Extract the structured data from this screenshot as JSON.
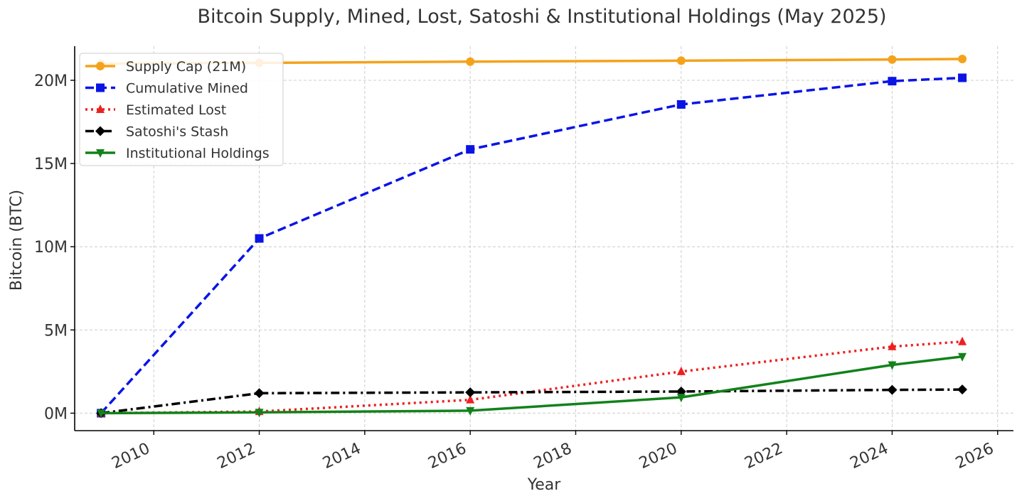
{
  "chart_data": {
    "type": "line",
    "title": "Bitcoin Supply, Mined, Lost, Satoshi & Institutional Holdings (May 2025)",
    "xlabel": "Year",
    "ylabel": "Bitcoin (BTC)",
    "xlim": [
      2008.5,
      2026.3
    ],
    "ylim": [
      -1050000,
      22050000
    ],
    "x_ticks": [
      2010,
      2012,
      2014,
      2016,
      2018,
      2020,
      2022,
      2024,
      2026
    ],
    "x_tick_labels": [
      "2010",
      "2012",
      "2014",
      "2016",
      "2018",
      "2020",
      "2022",
      "2024",
      "2026"
    ],
    "y_ticks": [
      0,
      5000000,
      10000000,
      15000000,
      20000000
    ],
    "y_tick_labels": [
      "0M",
      "5M",
      "10M",
      "15M",
      "20M"
    ],
    "grid": true,
    "legend_position": "upper-left",
    "x": [
      2009,
      2012,
      2016,
      2020,
      2024,
      2025.33
    ],
    "series": [
      {
        "name": "Supply Cap (21M)",
        "color": "#f5a21b",
        "line_style": "solid",
        "marker": "circle",
        "values": [
          21000000,
          21050000,
          21120000,
          21180000,
          21250000,
          21280000
        ]
      },
      {
        "name": "Cumulative Mined",
        "color": "#0a14e6",
        "line_style": "dashed",
        "marker": "square",
        "values": [
          0,
          10500000,
          15850000,
          18550000,
          19950000,
          20150000
        ]
      },
      {
        "name": "Estimated Lost",
        "color": "#ee2020",
        "line_style": "dotted",
        "marker": "triangle-up",
        "values": [
          0,
          100000,
          800000,
          2500000,
          4000000,
          4300000
        ]
      },
      {
        "name": "Satoshi's Stash",
        "color": "#000000",
        "line_style": "dashdot",
        "marker": "diamond",
        "values": [
          0,
          1200000,
          1250000,
          1300000,
          1400000,
          1420000
        ]
      },
      {
        "name": "Institutional Holdings",
        "color": "#12821a",
        "line_style": "solid",
        "marker": "triangle-down",
        "values": [
          0,
          50000,
          150000,
          950000,
          2900000,
          3400000
        ]
      }
    ]
  }
}
